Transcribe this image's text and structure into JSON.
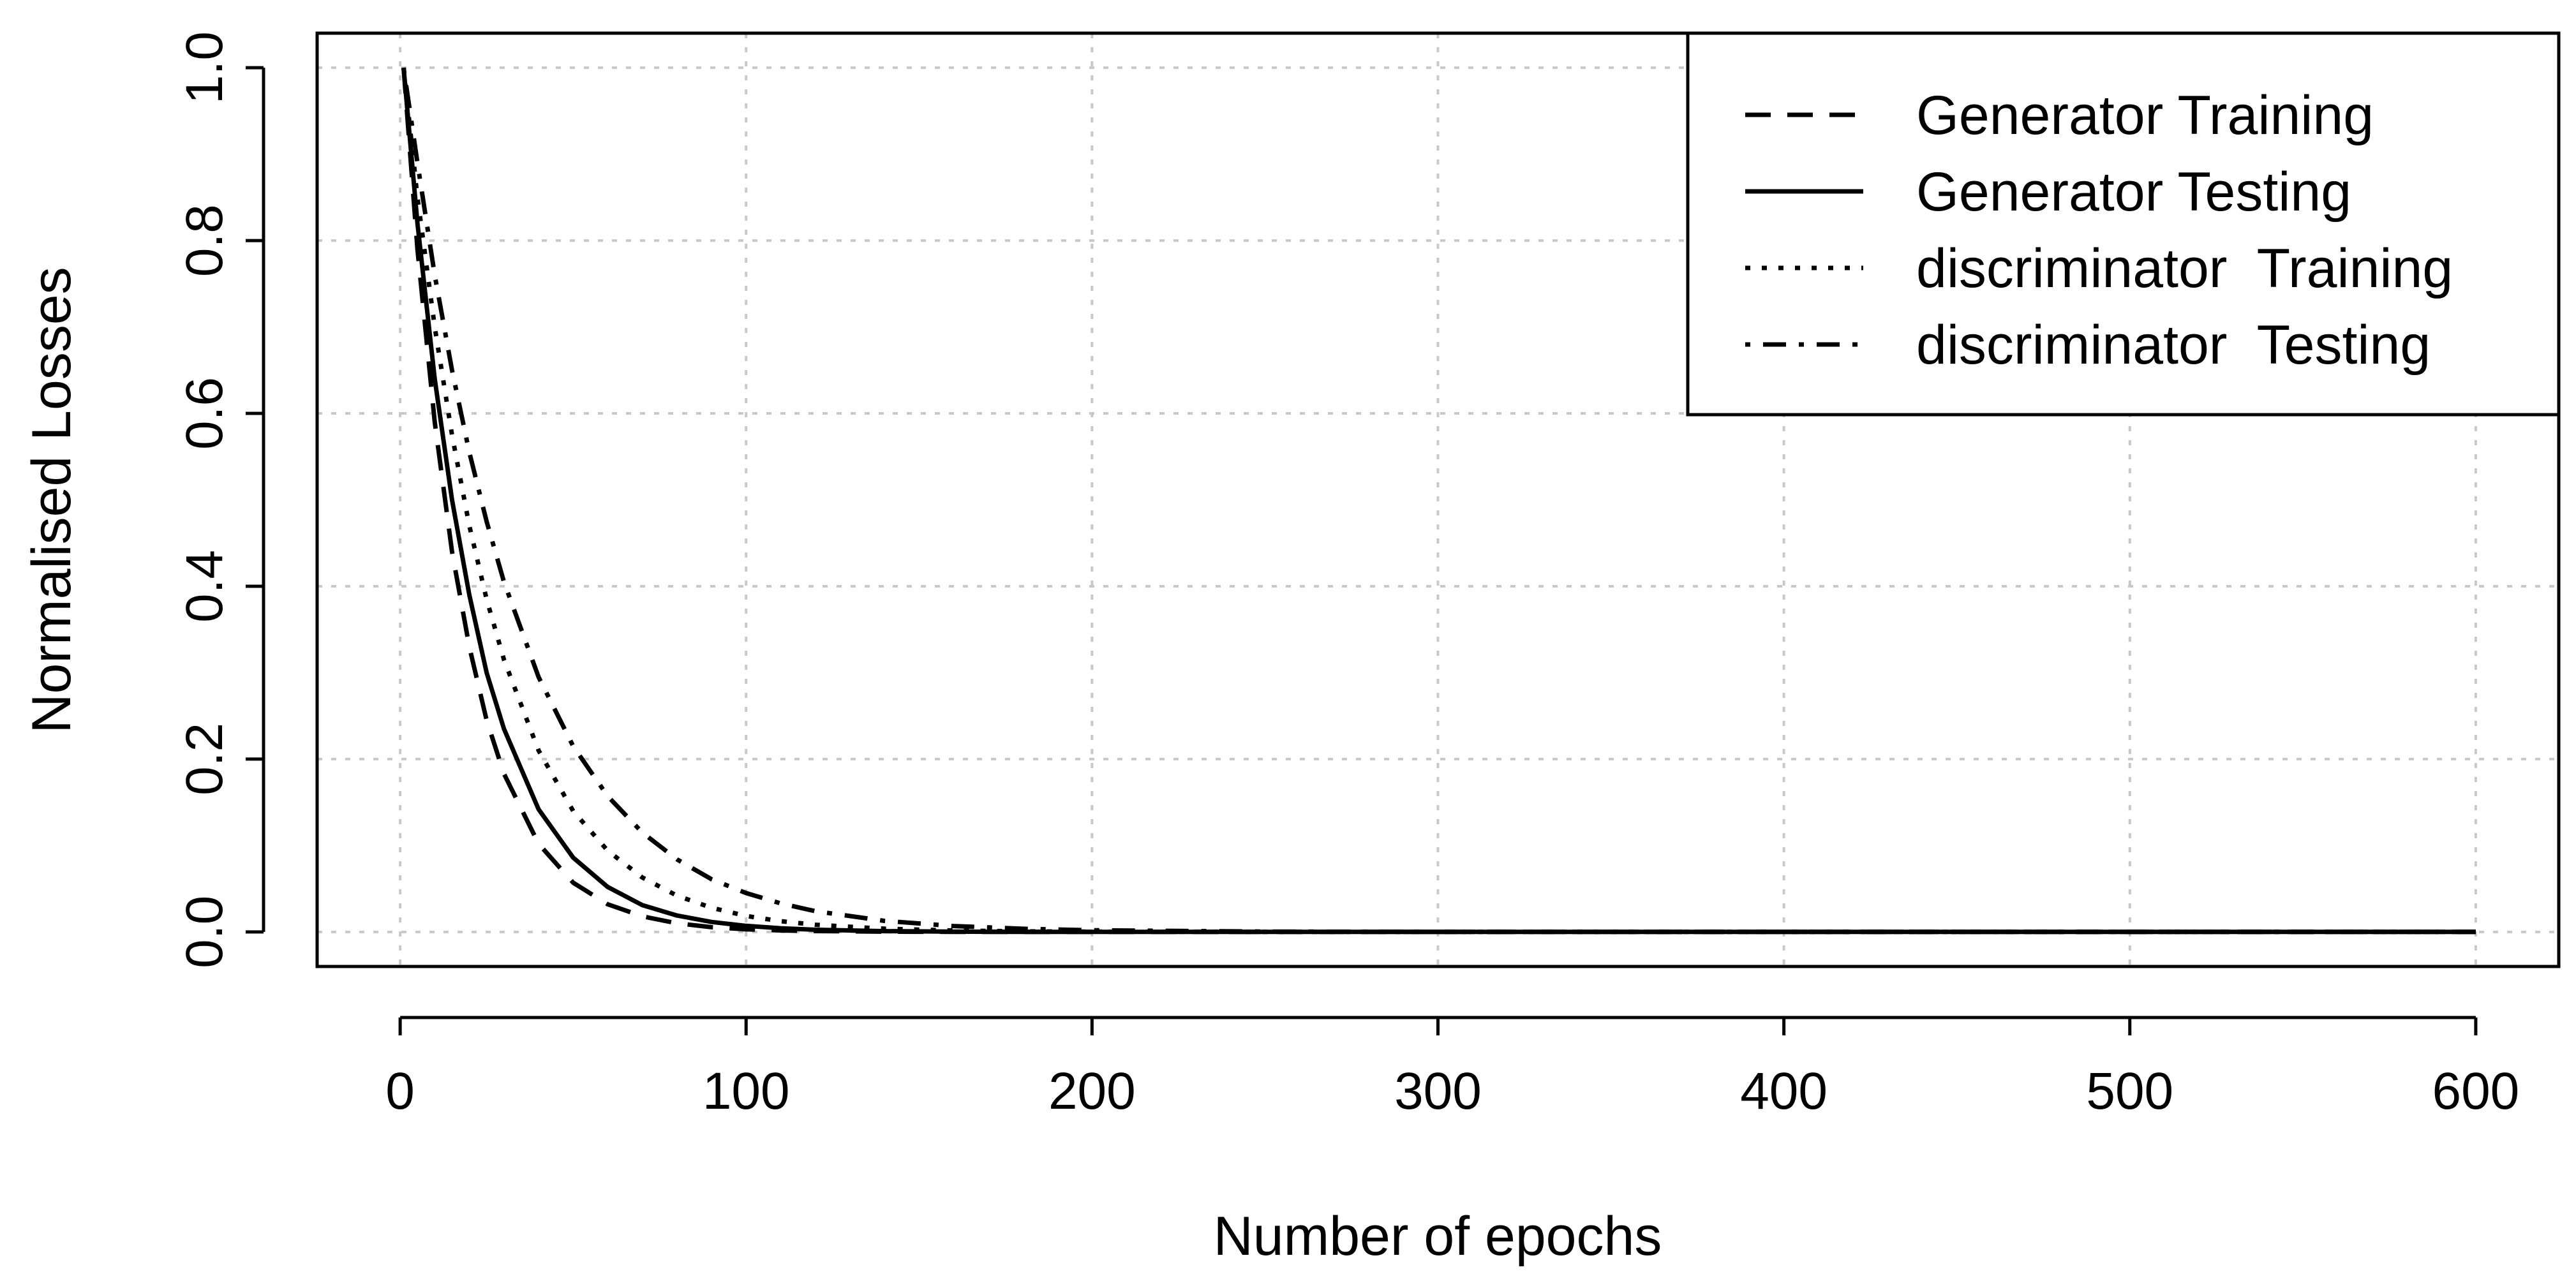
{
  "chart_data": {
    "type": "line",
    "title": "",
    "xlabel": "Number of epochs",
    "ylabel": "Normalised Losses",
    "xlim": [
      -24,
      624
    ],
    "ylim": [
      -0.04,
      1.04
    ],
    "x_ticks": [
      0,
      100,
      200,
      300,
      400,
      500,
      600
    ],
    "x_tick_labels": [
      "0",
      "100",
      "200",
      "300",
      "400",
      "500",
      "600"
    ],
    "y_ticks": [
      0.0,
      0.2,
      0.4,
      0.6,
      0.8,
      1.0
    ],
    "y_tick_labels": [
      "0.0",
      "0.2",
      "0.4",
      "0.6",
      "0.8",
      "1.0"
    ],
    "grid": true,
    "legend_position": "top-right",
    "x": [
      1,
      5,
      10,
      15,
      20,
      25,
      30,
      40,
      50,
      60,
      70,
      80,
      90,
      100,
      110,
      120,
      140,
      160,
      180,
      200,
      250,
      300,
      400,
      500,
      600
    ],
    "series": [
      {
        "name": "Generator Training",
        "line_style": "dashed",
        "values": [
          1.0,
          0.79,
          0.59,
          0.44,
          0.33,
          0.245,
          0.183,
          0.102,
          0.057,
          0.032,
          0.018,
          0.01,
          0.0055,
          0.003,
          0.0017,
          0.001,
          0.0003,
          0.0001,
          0.0,
          0.0,
          0.0,
          0.0,
          0.0,
          0.0,
          0.0
        ]
      },
      {
        "name": "Generator Testing",
        "line_style": "solid",
        "values": [
          1.0,
          0.82,
          0.64,
          0.5,
          0.39,
          0.3,
          0.235,
          0.142,
          0.086,
          0.052,
          0.031,
          0.019,
          0.0115,
          0.007,
          0.0042,
          0.0025,
          0.0009,
          0.0003,
          0.0001,
          0.0,
          0.0,
          0.0,
          0.0,
          0.0,
          0.0
        ]
      },
      {
        "name": "discriminator  Training",
        "line_style": "dotted",
        "values": [
          1.0,
          0.85,
          0.7,
          0.575,
          0.47,
          0.385,
          0.315,
          0.21,
          0.14,
          0.094,
          0.063,
          0.042,
          0.028,
          0.0185,
          0.0124,
          0.0083,
          0.0037,
          0.0016,
          0.0007,
          0.0003,
          0.0,
          0.0,
          0.0,
          0.0,
          0.0
        ]
      },
      {
        "name": "discriminator  Testing",
        "line_style": "dotdash",
        "values": [
          1.0,
          0.89,
          0.76,
          0.65,
          0.555,
          0.475,
          0.405,
          0.295,
          0.215,
          0.157,
          0.115,
          0.084,
          0.061,
          0.045,
          0.033,
          0.024,
          0.0128,
          0.0068,
          0.0036,
          0.0019,
          0.0004,
          0.0001,
          0.0,
          0.0,
          0.0
        ]
      }
    ]
  }
}
